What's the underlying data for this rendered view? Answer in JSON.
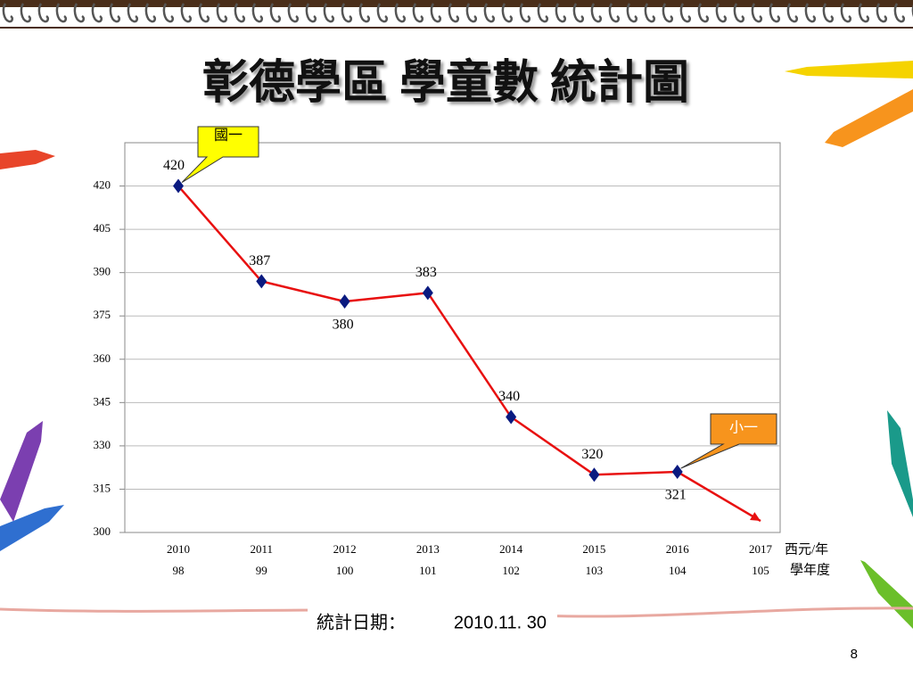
{
  "chart_data": {
    "type": "line",
    "title": "彰德學區  學童數  統計圖",
    "categories": [
      "2010",
      "2011",
      "2012",
      "2013",
      "2014",
      "2015",
      "2016",
      "2017"
    ],
    "school_years": [
      "98",
      "99",
      "100",
      "101",
      "102",
      "103",
      "104",
      "105"
    ],
    "x_label": [
      "西元/年",
      "學年度"
    ],
    "series": [
      {
        "name": "學童數",
        "color": "#e81010",
        "marker_color": "#0a1a80",
        "values": [
          420,
          387,
          380,
          383,
          340,
          320,
          321,
          304
        ],
        "value_labels": [
          "420",
          "387",
          "380",
          "383",
          "340",
          "320",
          "321",
          null
        ]
      }
    ],
    "ylim": [
      300,
      435
    ],
    "yticks": [
      300,
      315,
      330,
      345,
      360,
      375,
      390,
      405,
      420
    ],
    "grid": true,
    "annotations": [
      {
        "text": "國一",
        "category_index": 0,
        "color": "#ffff00"
      },
      {
        "text": "小一",
        "category_index": 6,
        "color": "#f7941d"
      }
    ],
    "footer": {
      "label": "統計日期：",
      "date": "2010.11. 30"
    },
    "page_number": "8"
  }
}
